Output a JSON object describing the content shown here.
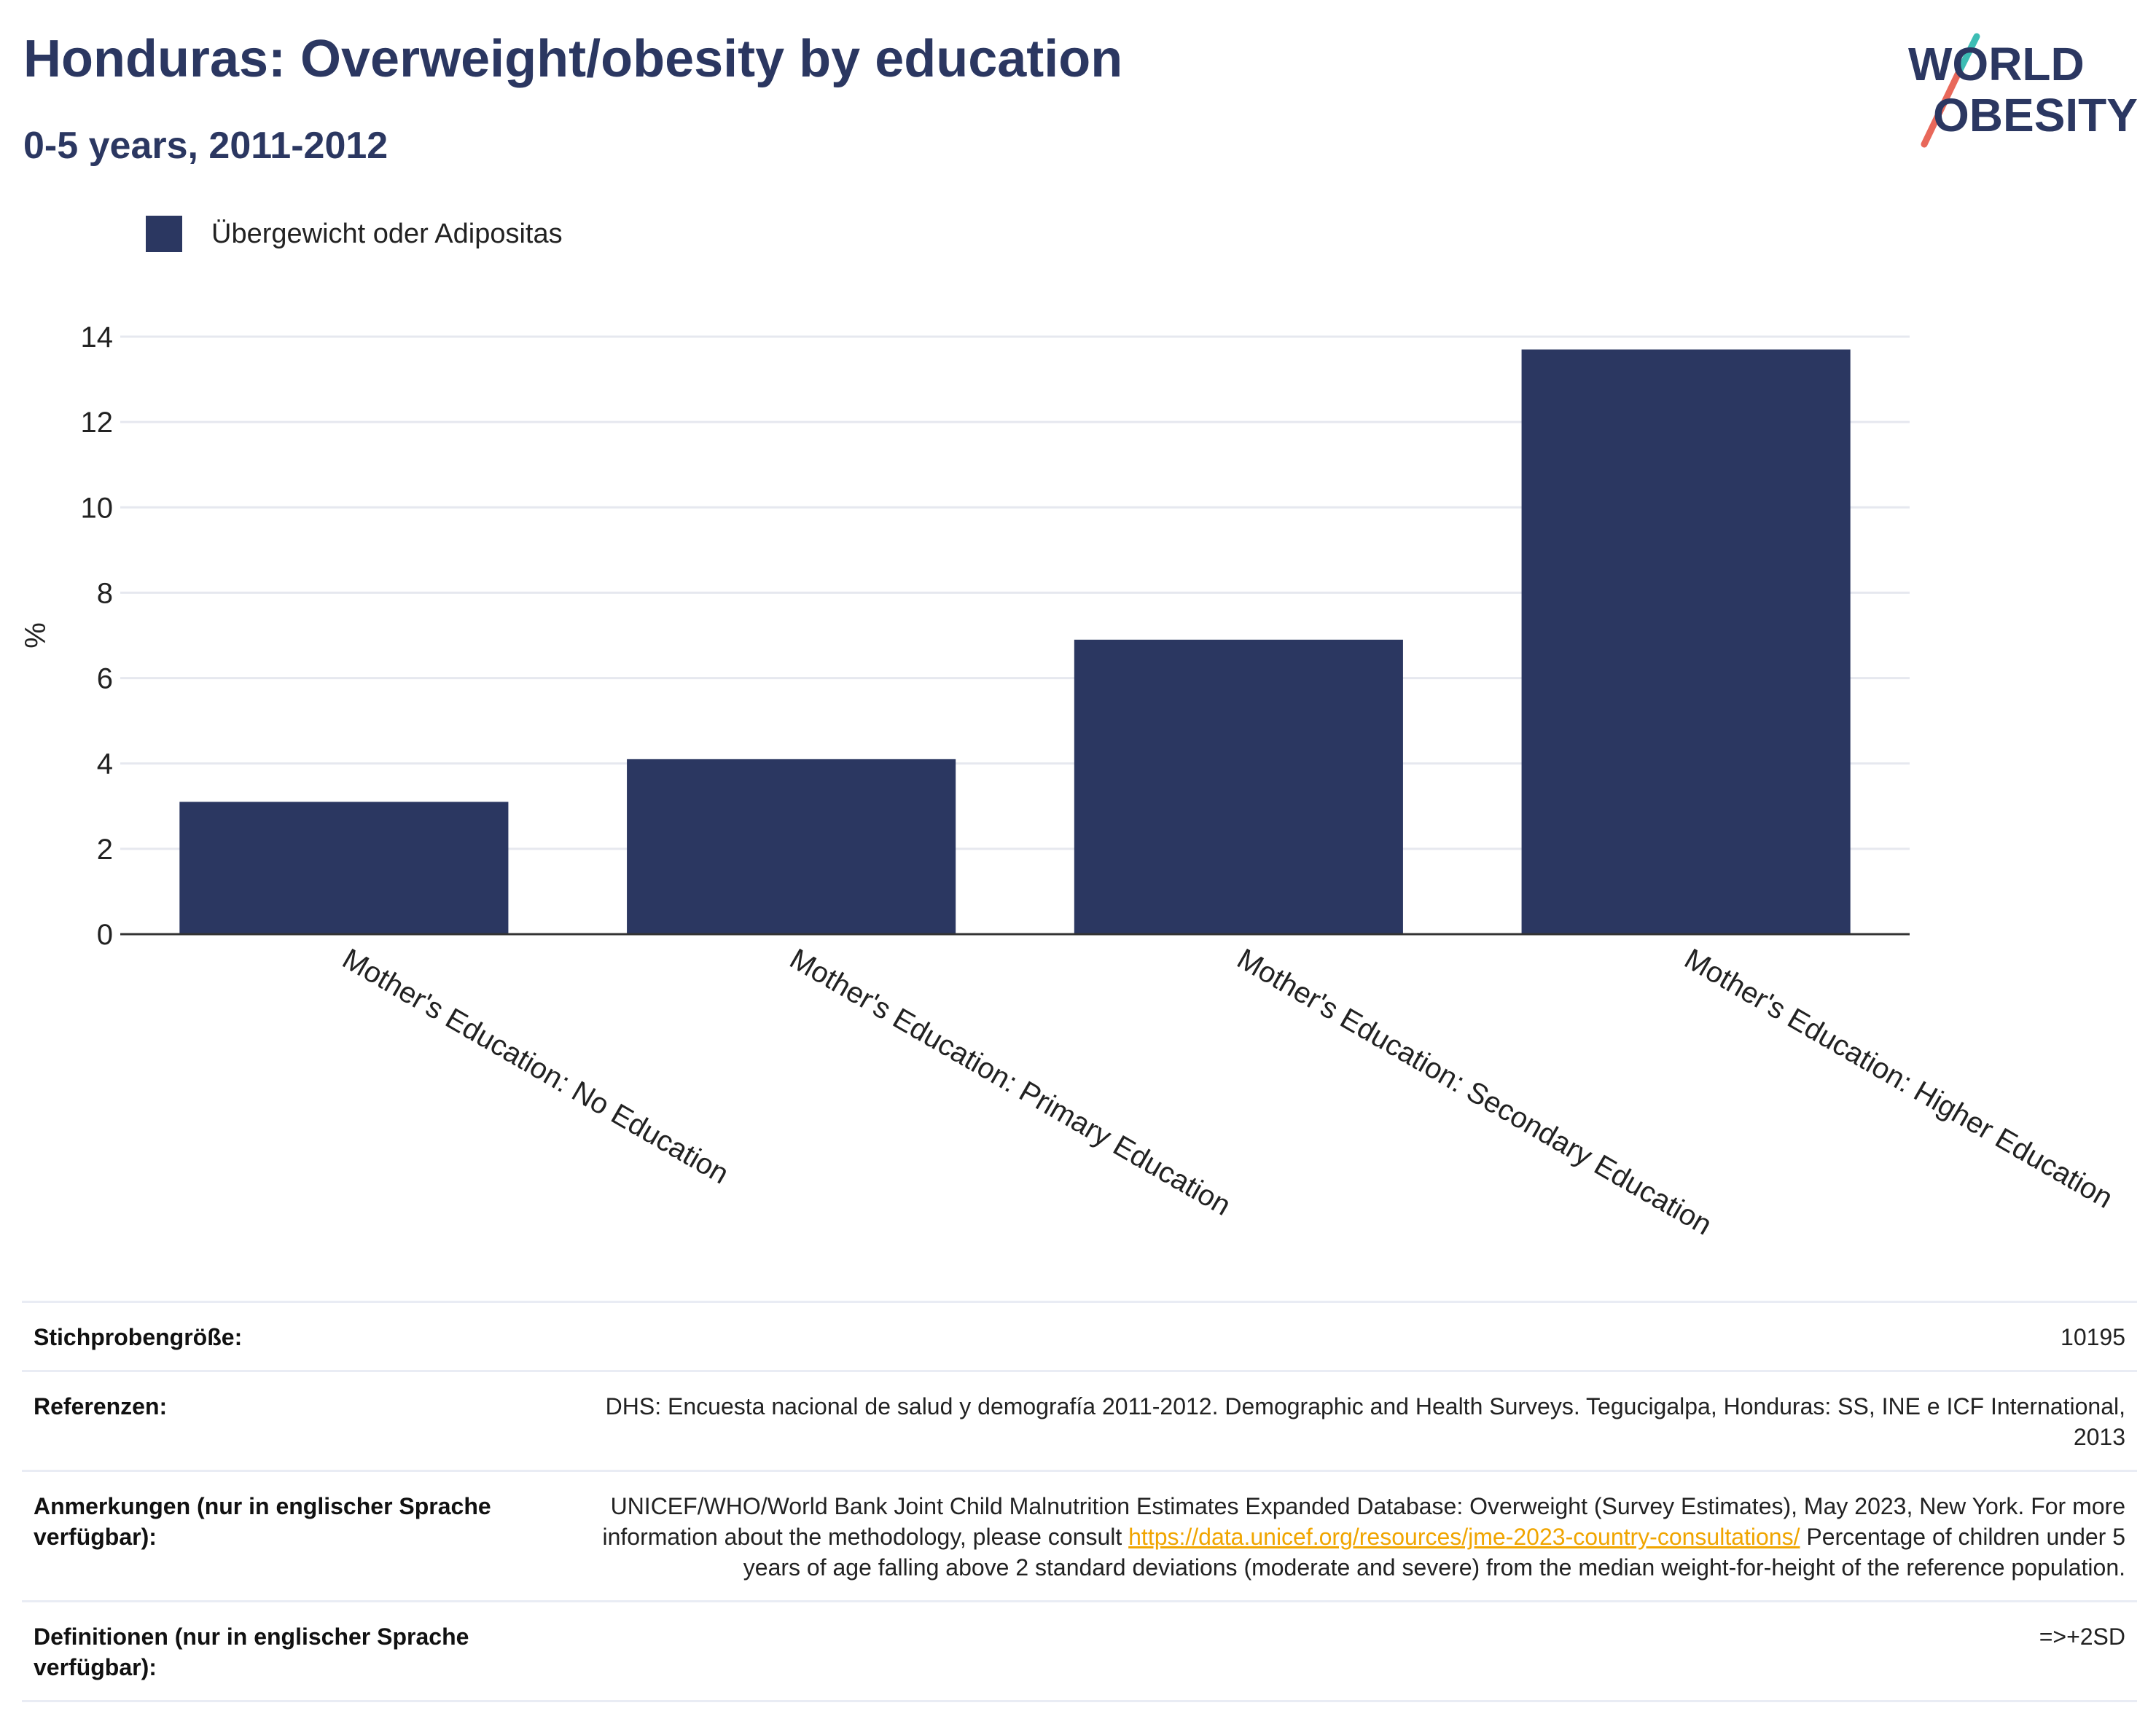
{
  "header": {
    "title": "Honduras: Overweight/obesity by education",
    "subtitle": "0-5 years, 2011-2012"
  },
  "logo": {
    "line1": "WORLD",
    "line2": "OBESITY",
    "colors": {
      "text": "#2b3761",
      "slash_top": "#3dbdb4",
      "slash_bottom": "#e8685a"
    }
  },
  "legend": {
    "label": "Übergewicht oder Adipositas",
    "color": "#2b3761"
  },
  "chart_data": {
    "type": "bar",
    "categories": [
      "Mother's Education: No Education",
      "Mother's Education: Primary Education",
      "Mother's Education: Secondary Education",
      "Mother's Education: Higher Education"
    ],
    "series": [
      {
        "name": "Übergewicht oder Adipositas",
        "values": [
          3.1,
          4.1,
          6.9,
          13.7
        ],
        "color": "#2b3761"
      }
    ],
    "ylabel": "%",
    "xlabel": "",
    "ylim": [
      0,
      14
    ],
    "yticks": [
      0,
      2,
      4,
      6,
      8,
      10,
      12,
      14
    ],
    "grid": true,
    "legend_position": "top-left"
  },
  "info": {
    "sample_size": {
      "label": "Stichprobengröße:",
      "value": "10195"
    },
    "references": {
      "label": "Referenzen:",
      "value": "DHS: Encuesta nacional de salud y demografía 2011-2012. Demographic and Health Surveys. Tegucigalpa, Honduras: SS, INE e ICF International, 2013"
    },
    "notes": {
      "label": "Anmerkungen (nur in englischer Sprache verfügbar):",
      "text_before": "UNICEF/WHO/World Bank Joint Child Malnutrition Estimates Expanded Database: Overweight (Survey Estimates), May 2023, New York. For more information about the methodology, please consult ",
      "link": "https://data.unicef.org/resources/jme-2023-country-consultations/",
      "text_after": " Percentage of children under 5 years of age falling above 2 standard deviations (moderate and severe) from the median weight-for-height of the reference population."
    },
    "definitions": {
      "label": "Definitionen (nur in englischer Sprache verfügbar):",
      "value": "=>+2SD"
    }
  }
}
